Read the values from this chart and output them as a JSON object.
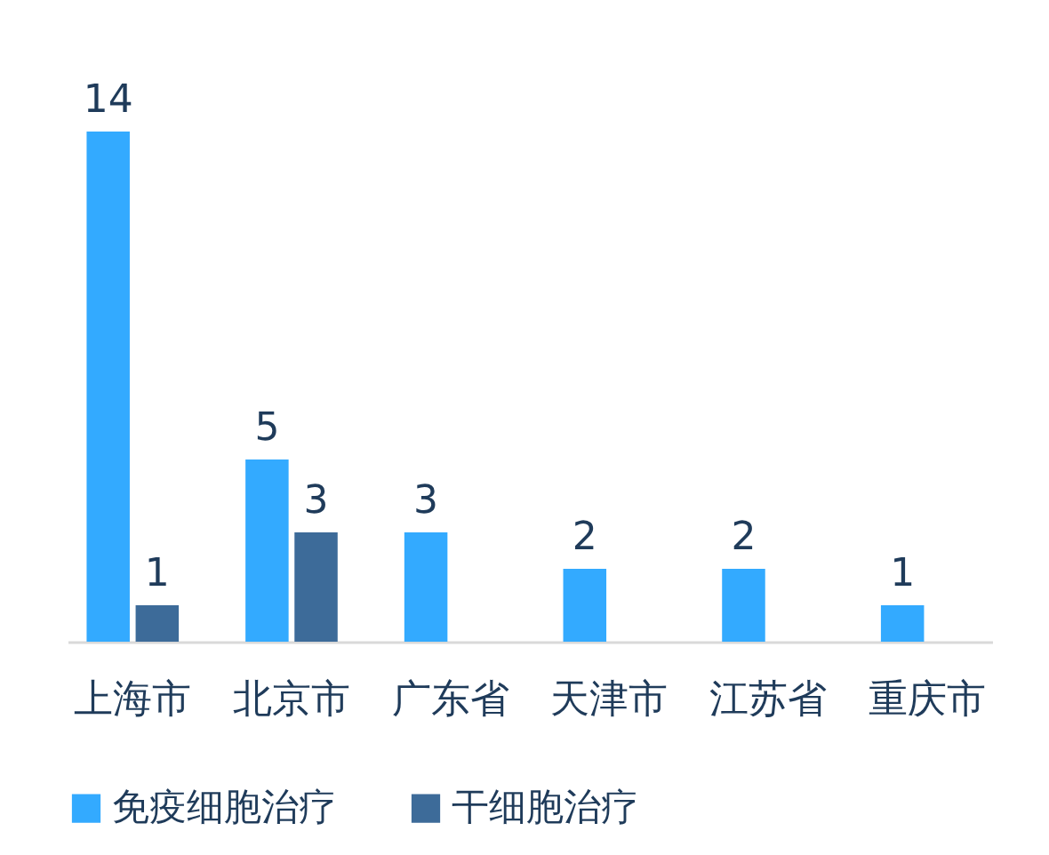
{
  "chart_data": {
    "type": "bar",
    "categories": [
      "上海市",
      "北京市",
      "广东省",
      "天津市",
      "江苏省",
      "重庆市"
    ],
    "series": [
      {
        "name": "免疫细胞治疗",
        "color": "#33aaff",
        "values": [
          14,
          5,
          3,
          2,
          2,
          1
        ]
      },
      {
        "name": "干细胞治疗",
        "color": "#3d6b99",
        "values": [
          1,
          3,
          null,
          null,
          null,
          null
        ]
      }
    ],
    "ylim": [
      0,
      14
    ],
    "data_labels": true,
    "legend": "bottom"
  }
}
